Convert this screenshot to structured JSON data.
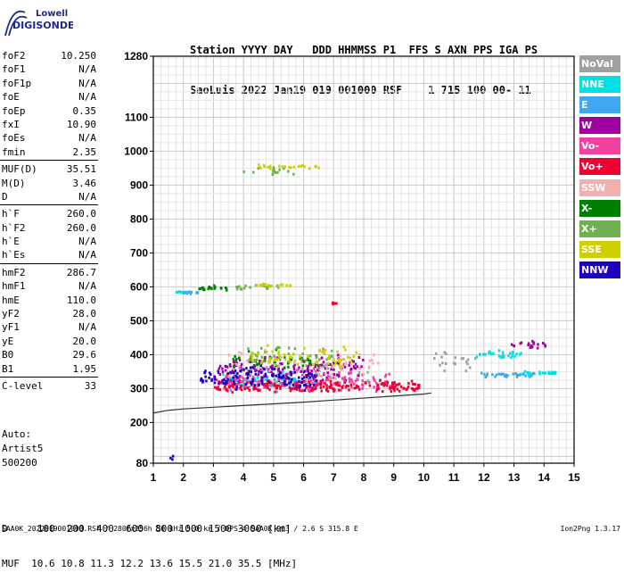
{
  "logo": {
    "line1": "Lowell",
    "line2": "DIGISONDE"
  },
  "header": {
    "line1": "Station YYYY DAY   DDD HHMMSS P1  FFS S AXN PPS IGA PS",
    "line2": "SaoLuis 2022 Jan19 019 001000 RSF    1 715 100 00- 11"
  },
  "params": [
    {
      "label": "foF2",
      "value": "10.250"
    },
    {
      "label": "foF1",
      "value": "N/A"
    },
    {
      "label": "foF1p",
      "value": "N/A"
    },
    {
      "label": "foE",
      "value": "N/A"
    },
    {
      "label": "foEp",
      "value": "0.35"
    },
    {
      "label": "fxI",
      "value": "10.90"
    },
    {
      "label": "foEs",
      "value": "N/A"
    },
    {
      "label": "fmin",
      "value": "2.35"
    },
    {
      "label": "MUF(D)",
      "value": "35.51",
      "sep": true
    },
    {
      "label": "M(D)",
      "value": "3.46"
    },
    {
      "label": "D",
      "value": "N/A"
    },
    {
      "label": "h`F",
      "value": "260.0",
      "sep": true
    },
    {
      "label": "h`F2",
      "value": "260.0"
    },
    {
      "label": "h`E",
      "value": "N/A"
    },
    {
      "label": "h`Es",
      "value": "N/A"
    },
    {
      "label": "hmF2",
      "value": "286.7",
      "sep": true
    },
    {
      "label": "hmF1",
      "value": "N/A"
    },
    {
      "label": "hmE",
      "value": "110.0"
    },
    {
      "label": "yF2",
      "value": "28.0"
    },
    {
      "label": "yF1",
      "value": "N/A"
    },
    {
      "label": "yE",
      "value": "20.0"
    },
    {
      "label": "B0",
      "value": "29.6"
    },
    {
      "label": "B1",
      "value": "1.95"
    },
    {
      "label": "C-level",
      "value": "33",
      "sep": true
    }
  ],
  "auto": {
    "line1": "Auto:",
    "line2": "Artist5",
    "line3": "500200"
  },
  "bottom_table": {
    "line1": "D     100  200  400  600  800 1000 1500 3000 [km]",
    "line2": "MUF  10.6 10.8 11.3 12.2 13.6 15.5 21.0 35.5 [MHz]"
  },
  "footer": "SAA0K_2022019001000.RSF / 280fx256h 50 kHz 5.0 km / DPS-4 SAA0K 903 / 2.6 S 315.8 E",
  "version": "Ion2Png 1.3.17",
  "legend": [
    {
      "label": "NoVal",
      "color": "#a0a0a0"
    },
    {
      "label": "NNE",
      "color": "#00e0e0"
    },
    {
      "label": "E",
      "color": "#40a8f0"
    },
    {
      "label": "W",
      "color": "#a000a0"
    },
    {
      "label": "Vo-",
      "color": "#f040a0"
    },
    {
      "label": "Vo+",
      "color": "#f00030"
    },
    {
      "label": "SSW",
      "color": "#f0b0b0"
    },
    {
      "label": "X-",
      "color": "#008000"
    },
    {
      "label": "X+",
      "color": "#70b050"
    },
    {
      "label": "SSE",
      "color": "#d0d000"
    },
    {
      "label": "NNW",
      "color": "#2000c0"
    }
  ],
  "chart_data": {
    "type": "scatter",
    "title": "",
    "xlabel": "",
    "ylabel": "",
    "x_ticks": [
      1,
      2,
      3,
      4,
      5,
      6,
      7,
      8,
      9,
      10,
      11,
      12,
      13,
      14,
      15
    ],
    "y_ticks": [
      80,
      200,
      300,
      400,
      500,
      600,
      700,
      800,
      900,
      1000,
      1100,
      1280
    ],
    "xlim": [
      1,
      15
    ],
    "ylim": [
      80,
      1280
    ],
    "grid": true,
    "profile_line": {
      "name": "",
      "x": [
        1.0,
        1.5,
        2.0,
        3.0,
        4.0,
        5.0,
        6.0,
        7.0,
        8.0,
        9.0,
        10.0,
        10.25
      ],
      "y": [
        228,
        236,
        240,
        245,
        250,
        255,
        260,
        266,
        272,
        278,
        284,
        287
      ]
    },
    "series": [
      {
        "name": "NoVal",
        "color": "#a0a0a0",
        "clusters": [
          [
            6.0,
            350,
            4.5,
            60,
            60
          ],
          [
            11,
            380,
            1.5,
            40,
            20
          ]
        ]
      },
      {
        "name": "NNE",
        "color": "#00e0e0",
        "clusters": [
          [
            4.5,
            330,
            2.5,
            30,
            40
          ],
          [
            12.5,
            400,
            1.5,
            15,
            30
          ],
          [
            13.8,
            345,
            1.2,
            8,
            30
          ],
          [
            2.0,
            585,
            0.5,
            5,
            10
          ]
        ]
      },
      {
        "name": "E",
        "color": "#40a8f0",
        "clusters": [
          [
            5.0,
            320,
            3.0,
            35,
            50
          ],
          [
            12.8,
            340,
            1.8,
            10,
            30
          ],
          [
            2.2,
            582,
            0.6,
            5,
            12
          ]
        ]
      },
      {
        "name": "W",
        "color": "#a000a0",
        "clusters": [
          [
            5.5,
            360,
            5.0,
            50,
            150
          ],
          [
            13.5,
            430,
            1.2,
            15,
            20
          ]
        ]
      },
      {
        "name": "Vo-",
        "color": "#f040a0",
        "clusters": [
          [
            6.0,
            320,
            6.0,
            40,
            150
          ]
        ]
      },
      {
        "name": "Vo+",
        "color": "#f00030",
        "clusters": [
          [
            6.5,
            305,
            7.0,
            25,
            200
          ],
          [
            7.0,
            550,
            0.3,
            5,
            5
          ]
        ]
      },
      {
        "name": "SSW",
        "color": "#f0b0b0",
        "clusters": [
          [
            6.0,
            370,
            5.0,
            60,
            60
          ]
        ]
      },
      {
        "name": "X-",
        "color": "#008000",
        "clusters": [
          [
            5.0,
            380,
            3.0,
            40,
            40
          ],
          [
            3.0,
            595,
            1.0,
            10,
            20
          ]
        ]
      },
      {
        "name": "X+",
        "color": "#70b050",
        "clusters": [
          [
            5.5,
            400,
            3.0,
            40,
            40
          ],
          [
            4.5,
            600,
            1.5,
            10,
            20
          ],
          [
            4.8,
            940,
            2.0,
            15,
            15
          ]
        ]
      },
      {
        "name": "SSE",
        "color": "#d0d000",
        "clusters": [
          [
            6.0,
            395,
            3.5,
            45,
            60
          ],
          [
            5.5,
            955,
            2.0,
            12,
            25
          ],
          [
            5.0,
            605,
            1.2,
            8,
            15
          ]
        ]
      },
      {
        "name": "NNW",
        "color": "#2000c0",
        "clusters": [
          [
            4.5,
            330,
            4.0,
            50,
            120
          ],
          [
            1.7,
            95,
            0.3,
            20,
            3
          ]
        ]
      }
    ]
  }
}
